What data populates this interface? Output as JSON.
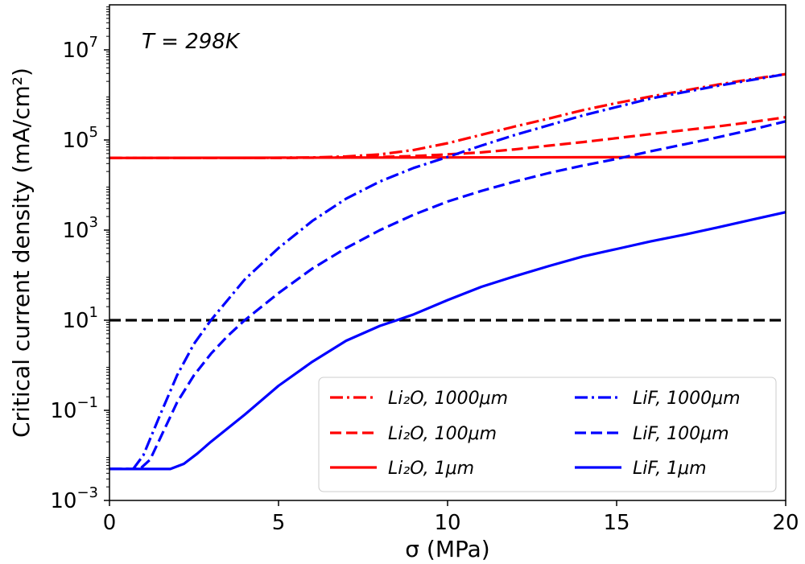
{
  "chart_data": {
    "type": "line",
    "annotation": "T = 298K",
    "xlabel": "σ (MPa)",
    "ylabel": "Critical current density (mA/cm²)",
    "xlim": [
      0,
      20
    ],
    "ylim": [
      0.001,
      100000000
    ],
    "yscale": "log",
    "grid": false,
    "legend_position": "lower-right",
    "legend_columns": 2,
    "x_ticks": [
      "0",
      "5",
      "10",
      "15",
      "20"
    ],
    "y_ticks": [
      {
        "base": "10",
        "exp": "−3",
        "value": 0.001
      },
      {
        "base": "10",
        "exp": "−1",
        "value": 0.1
      },
      {
        "base": "10",
        "exp": "1",
        "value": 10
      },
      {
        "base": "10",
        "exp": "3",
        "value": 1000
      },
      {
        "base": "10",
        "exp": "5",
        "value": 100000
      },
      {
        "base": "10",
        "exp": "7",
        "value": 10000000
      }
    ],
    "reference_line": {
      "y": 10,
      "color": "#000000",
      "style": "dashed"
    },
    "series": [
      {
        "name": "Li₂O, 1000μm",
        "color": "#ff0000",
        "style": "dashdot",
        "x": [
          0,
          4,
          6,
          7,
          8,
          9,
          10,
          11,
          12,
          13,
          14,
          15,
          16,
          17,
          18,
          19,
          20
        ],
        "y": [
          40000,
          40000,
          41000,
          43000,
          48000,
          60000,
          85000,
          130000,
          200000,
          300000,
          460000,
          660000,
          920000,
          1250000,
          1700000,
          2250000,
          2900000
        ]
      },
      {
        "name": "Li₂O, 100μm",
        "color": "#ff0000",
        "style": "dashed",
        "x": [
          0,
          5,
          7,
          8,
          9,
          10,
          11,
          12,
          13,
          14,
          15,
          16,
          17,
          18,
          19,
          20
        ],
        "y": [
          40000,
          40000,
          41000,
          42000,
          44000,
          48000,
          53000,
          62000,
          75000,
          90000,
          110000,
          135000,
          165000,
          200000,
          250000,
          320000
        ]
      },
      {
        "name": "Li₂O, 1μm",
        "color": "#ff0000",
        "style": "solid",
        "x": [
          0,
          20
        ],
        "y": [
          40000,
          42000
        ]
      },
      {
        "name": "LiF, 1000μm",
        "color": "#0000ff",
        "style": "dashdot",
        "x": [
          0,
          0.7,
          1.0,
          1.5,
          2.0,
          2.5,
          3.0,
          4.0,
          5.0,
          6.0,
          7.0,
          8.0,
          9.0,
          10.0,
          11.0,
          12.0,
          14.0,
          16.0,
          18.0,
          20.0
        ],
        "y": [
          0.005,
          0.005,
          0.01,
          0.08,
          0.6,
          3.0,
          10,
          80,
          400,
          1600,
          5000,
          12000,
          24000,
          42000,
          75000,
          130000,
          350000,
          830000,
          1600000,
          2900000
        ]
      },
      {
        "name": "LiF, 100μm",
        "color": "#0000ff",
        "style": "dashed",
        "x": [
          0,
          0.9,
          1.2,
          2.0,
          2.5,
          3.0,
          3.5,
          4.0,
          5.0,
          6.0,
          7.0,
          8.0,
          9.0,
          10.0,
          11.0,
          12.0,
          13.0,
          14.0,
          15.0,
          16.0,
          17.0,
          18.0,
          19.0,
          20.0
        ],
        "y": [
          0.005,
          0.005,
          0.008,
          0.15,
          0.6,
          1.8,
          4.5,
          10,
          40,
          140,
          400,
          1000,
          2200,
          4300,
          7400,
          12000,
          18500,
          27000,
          38000,
          56000,
          80000,
          115000,
          170000,
          260000
        ]
      },
      {
        "name": "LiF, 1μm",
        "color": "#0000ff",
        "style": "solid",
        "x": [
          0,
          1.8,
          2.2,
          2.6,
          3,
          4,
          5,
          6,
          7,
          8,
          8.5,
          9,
          10,
          11,
          12,
          13,
          14,
          15,
          16,
          17,
          18,
          19,
          20
        ],
        "y": [
          0.005,
          0.005,
          0.0065,
          0.011,
          0.02,
          0.08,
          0.35,
          1.2,
          3.5,
          7.5,
          10,
          13.5,
          28,
          55,
          95,
          160,
          260,
          380,
          560,
          790,
          1150,
          1700,
          2500
        ]
      }
    ]
  }
}
